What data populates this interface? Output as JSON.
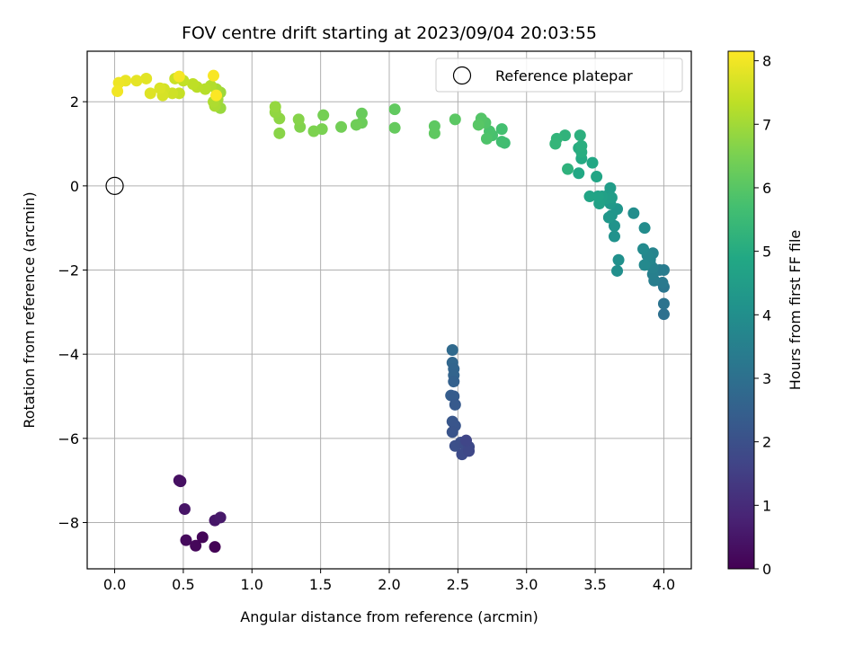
{
  "chart_data": {
    "type": "scatter",
    "title": "FOV centre drift starting at 2023/09/04 20:03:55",
    "xlabel": "Angular distance from reference (arcmin)",
    "ylabel": "Rotation from reference (arcmin)",
    "xlim": [
      -0.2,
      4.2
    ],
    "ylim": [
      -9.1,
      3.2
    ],
    "xticks": [
      0.0,
      0.5,
      1.0,
      1.5,
      2.0,
      2.5,
      3.0,
      3.5,
      4.0
    ],
    "xtick_labels": [
      "0.0",
      "0.5",
      "1.0",
      "1.5",
      "2.0",
      "2.5",
      "3.0",
      "3.5",
      "4.0"
    ],
    "yticks": [
      -8,
      -6,
      -4,
      -2,
      0,
      2
    ],
    "ytick_labels": [
      "−8",
      "−6",
      "−4",
      "−2",
      "0",
      "2"
    ],
    "grid": true,
    "legend": {
      "placement": "top-right",
      "entries": [
        "Reference platepar"
      ]
    },
    "reference_point": {
      "x": 0,
      "y": 0
    },
    "colorbar": {
      "label": "Hours from first FF file",
      "min": 0,
      "max": 8.15,
      "ticks": [
        0,
        1,
        2,
        3,
        4,
        5,
        6,
        7,
        8
      ],
      "tick_labels": [
        "0",
        "1",
        "2",
        "3",
        "4",
        "5",
        "6",
        "7",
        "8"
      ],
      "colormap": "viridis"
    },
    "points": [
      [
        0.47,
        -7.0,
        0.3
      ],
      [
        0.48,
        -7.02,
        0.35
      ],
      [
        0.51,
        -7.68,
        0.45
      ],
      [
        0.52,
        -8.42,
        0.2
      ],
      [
        0.59,
        -8.55,
        0.15
      ],
      [
        0.64,
        -8.35,
        0.1
      ],
      [
        0.73,
        -8.58,
        0.05
      ],
      [
        0.73,
        -7.95,
        0.5
      ],
      [
        0.77,
        -7.88,
        0.55
      ],
      [
        2.46,
        -3.9,
        2.8
      ],
      [
        2.46,
        -4.2,
        2.7
      ],
      [
        2.47,
        -4.35,
        2.65
      ],
      [
        2.47,
        -4.5,
        2.6
      ],
      [
        2.47,
        -4.65,
        2.5
      ],
      [
        2.45,
        -4.98,
        2.4
      ],
      [
        2.47,
        -5.0,
        2.35
      ],
      [
        2.48,
        -5.2,
        2.3
      ],
      [
        2.46,
        -5.6,
        2.2
      ],
      [
        2.48,
        -5.7,
        2.15
      ],
      [
        2.46,
        -5.85,
        2.1
      ],
      [
        2.48,
        -6.18,
        2.0
      ],
      [
        2.52,
        -6.1,
        1.95
      ],
      [
        2.55,
        -6.15,
        1.9
      ],
      [
        2.53,
        -6.38,
        1.85
      ],
      [
        2.58,
        -6.2,
        1.8
      ],
      [
        2.58,
        -6.3,
        1.75
      ],
      [
        2.56,
        -6.05,
        1.7
      ],
      [
        4.0,
        -3.05,
        3.0
      ],
      [
        4.0,
        -2.8,
        3.1
      ],
      [
        4.0,
        -2.4,
        3.2
      ],
      [
        3.99,
        -2.3,
        3.3
      ],
      [
        4.0,
        -2.0,
        3.35
      ],
      [
        3.97,
        -2.0,
        3.4
      ],
      [
        3.93,
        -2.25,
        3.45
      ],
      [
        3.92,
        -2.1,
        3.5
      ],
      [
        3.92,
        -1.95,
        3.55
      ],
      [
        3.9,
        -1.85,
        3.6
      ],
      [
        3.92,
        -1.6,
        3.65
      ],
      [
        3.9,
        -1.75,
        3.7
      ],
      [
        3.88,
        -1.65,
        3.75
      ],
      [
        3.86,
        -1.88,
        3.8
      ],
      [
        3.85,
        -1.5,
        3.85
      ],
      [
        3.86,
        -1.0,
        3.9
      ],
      [
        3.78,
        -0.65,
        3.95
      ],
      [
        3.66,
        -2.02,
        4.0
      ],
      [
        3.67,
        -1.76,
        4.05
      ],
      [
        3.64,
        -1.2,
        4.1
      ],
      [
        3.64,
        -0.95,
        4.15
      ],
      [
        3.66,
        -0.55,
        4.2
      ],
      [
        3.62,
        -0.7,
        4.25
      ],
      [
        3.6,
        -0.75,
        4.3
      ],
      [
        3.61,
        -0.42,
        4.35
      ],
      [
        3.6,
        -0.2,
        4.4
      ],
      [
        3.61,
        -0.05,
        4.45
      ],
      [
        3.62,
        -0.28,
        4.5
      ],
      [
        3.58,
        -0.3,
        4.55
      ],
      [
        3.55,
        -0.25,
        4.6
      ],
      [
        3.53,
        -0.42,
        4.65
      ],
      [
        3.52,
        -0.25,
        4.7
      ],
      [
        3.46,
        -0.25,
        4.75
      ],
      [
        3.51,
        0.22,
        4.8
      ],
      [
        3.48,
        0.55,
        4.85
      ],
      [
        3.38,
        0.3,
        4.9
      ],
      [
        3.4,
        0.65,
        4.95
      ],
      [
        3.38,
        0.9,
        5.0
      ],
      [
        3.4,
        0.8,
        5.05
      ],
      [
        3.4,
        0.95,
        5.1
      ],
      [
        3.39,
        1.2,
        5.15
      ],
      [
        3.3,
        0.4,
        5.2
      ],
      [
        3.28,
        1.2,
        5.25
      ],
      [
        3.22,
        1.12,
        5.3
      ],
      [
        3.21,
        1.0,
        5.35
      ],
      [
        2.84,
        1.02,
        5.6
      ],
      [
        2.82,
        1.05,
        5.65
      ],
      [
        2.82,
        1.35,
        5.7
      ],
      [
        2.75,
        1.2,
        5.75
      ],
      [
        2.73,
        1.3,
        5.8
      ],
      [
        2.71,
        1.12,
        5.85
      ],
      [
        2.7,
        1.5,
        5.9
      ],
      [
        2.67,
        1.6,
        5.95
      ],
      [
        2.65,
        1.45,
        6.0
      ],
      [
        2.48,
        1.58,
        6.05
      ],
      [
        2.33,
        1.42,
        6.1
      ],
      [
        2.33,
        1.25,
        6.12
      ],
      [
        2.04,
        1.82,
        6.15
      ],
      [
        2.04,
        1.38,
        6.2
      ],
      [
        1.8,
        1.72,
        6.25
      ],
      [
        1.8,
        1.5,
        6.3
      ],
      [
        1.76,
        1.45,
        6.35
      ],
      [
        1.65,
        1.4,
        6.4
      ],
      [
        1.52,
        1.68,
        6.45
      ],
      [
        1.51,
        1.35,
        6.5
      ],
      [
        1.45,
        1.3,
        6.55
      ],
      [
        1.35,
        1.4,
        6.6
      ],
      [
        1.34,
        1.58,
        6.65
      ],
      [
        1.2,
        1.25,
        6.7
      ],
      [
        1.2,
        1.6,
        6.75
      ],
      [
        1.17,
        1.75,
        6.8
      ],
      [
        1.17,
        1.88,
        6.85
      ],
      [
        0.77,
        1.85,
        6.9
      ],
      [
        0.77,
        2.22,
        6.95
      ],
      [
        0.75,
        2.05,
        7.0
      ],
      [
        0.74,
        2.3,
        7.05
      ],
      [
        0.73,
        1.9,
        7.1
      ],
      [
        0.72,
        2.0,
        7.15
      ],
      [
        0.7,
        2.38,
        7.2
      ],
      [
        0.66,
        2.3,
        7.25
      ],
      [
        0.6,
        2.35,
        7.3
      ],
      [
        0.57,
        2.42,
        7.35
      ],
      [
        0.5,
        2.5,
        7.4
      ],
      [
        0.47,
        2.2,
        7.45
      ],
      [
        0.44,
        2.55,
        7.5
      ],
      [
        0.42,
        2.2,
        7.55
      ],
      [
        0.36,
        2.3,
        7.6
      ],
      [
        0.35,
        2.15,
        7.65
      ],
      [
        0.33,
        2.32,
        7.7
      ],
      [
        0.26,
        2.2,
        7.75
      ],
      [
        0.23,
        2.55,
        7.8
      ],
      [
        0.16,
        2.5,
        7.85
      ],
      [
        0.08,
        2.5,
        7.9
      ],
      [
        0.03,
        2.45,
        7.95
      ],
      [
        0.02,
        2.25,
        8.0
      ],
      [
        0.47,
        2.6,
        8.05
      ],
      [
        0.72,
        2.62,
        8.08
      ],
      [
        0.74,
        2.15,
        8.12
      ]
    ]
  }
}
